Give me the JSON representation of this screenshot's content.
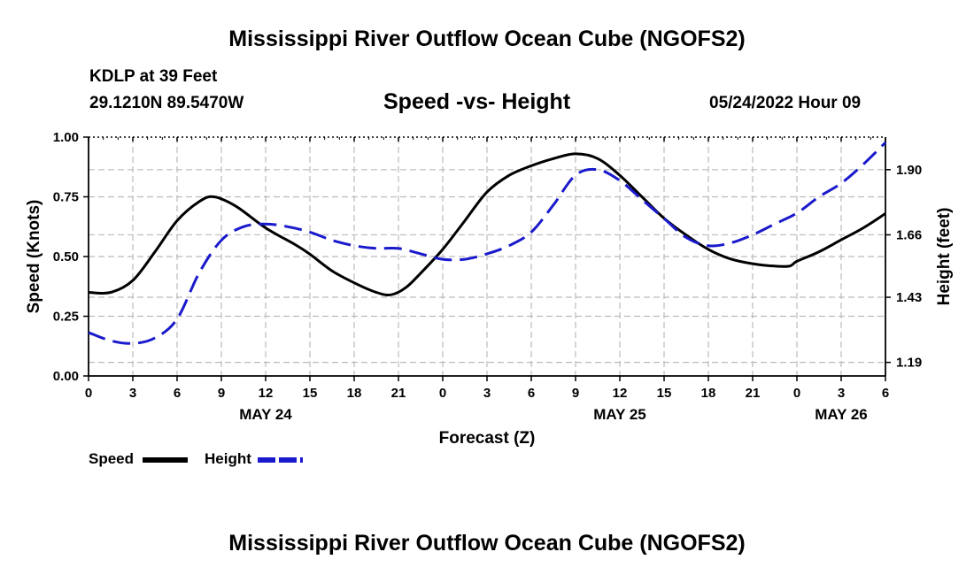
{
  "page": {
    "title": "Mississippi River Outflow Ocean Cube (NGOFS2)",
    "footer_title": "Mississippi River Outflow Ocean Cube (NGOFS2)",
    "station": "KDLP at 39 Feet",
    "coords": "29.1210N  89.5470W",
    "subtitle": "Speed -vs- Height",
    "datetime": "05/24/2022 Hour 09"
  },
  "legend": {
    "speed_label": "Speed",
    "height_label": "Height"
  },
  "colors": {
    "speed": "#000000",
    "height": "#1a1acc",
    "grid": "#bbbbbb"
  },
  "chart_data": {
    "type": "line",
    "xlabel": "Forecast (Z)",
    "ylabel": "Speed (Knots)",
    "y2label": "Height (feet)",
    "xlim": [
      0,
      54
    ],
    "ylim": [
      0,
      1.0
    ],
    "y2lim": [
      1.14,
      2.02
    ],
    "xticks": [
      0,
      3,
      6,
      9,
      12,
      15,
      18,
      21,
      24,
      27,
      30,
      33,
      36,
      39,
      42,
      45,
      48,
      51,
      54
    ],
    "xtick_labels": [
      "0",
      "3",
      "6",
      "9",
      "12",
      "15",
      "18",
      "21",
      "0",
      "3",
      "6",
      "9",
      "12",
      "15",
      "18",
      "21",
      "0",
      "3",
      "6"
    ],
    "yticks": [
      0.0,
      0.25,
      0.5,
      0.75,
      1.0
    ],
    "ytick_labels": [
      "0.00",
      "0.25",
      "0.50",
      "0.75",
      "1.00"
    ],
    "y2ticks": [
      1.19,
      1.43,
      1.66,
      1.9
    ],
    "y2tick_labels": [
      "1.19",
      "1.43",
      "1.66",
      "1.90"
    ],
    "date_labels": [
      {
        "x": 12,
        "label": "MAY 24"
      },
      {
        "x": 36,
        "label": "MAY 25"
      },
      {
        "x": 51,
        "label": "MAY 26"
      }
    ],
    "series": [
      {
        "name": "Speed",
        "axis": "left",
        "style": "solid",
        "x": [
          0,
          1.5,
          3,
          4.5,
          6,
          7.5,
          8.5,
          10,
          12,
          14,
          15,
          16.5,
          18,
          19.5,
          20.5,
          21.5,
          22.5,
          24,
          25.5,
          27,
          28.5,
          30,
          31.5,
          33,
          34.5,
          36,
          37.5,
          39,
          40.5,
          42,
          43.5,
          45,
          46.5,
          47.5,
          48,
          49.5,
          51,
          52.5,
          54
        ],
        "values": [
          0.35,
          0.35,
          0.4,
          0.52,
          0.65,
          0.73,
          0.75,
          0.71,
          0.62,
          0.55,
          0.51,
          0.44,
          0.39,
          0.35,
          0.34,
          0.37,
          0.43,
          0.53,
          0.65,
          0.77,
          0.84,
          0.88,
          0.91,
          0.93,
          0.91,
          0.84,
          0.75,
          0.66,
          0.59,
          0.53,
          0.49,
          0.47,
          0.46,
          0.46,
          0.48,
          0.52,
          0.57,
          0.62,
          0.68
        ]
      },
      {
        "name": "Height",
        "axis": "right",
        "style": "dashed",
        "x": [
          0,
          1.5,
          3,
          4.5,
          6,
          7.5,
          9,
          10.5,
          12,
          13.5,
          15,
          16.5,
          18,
          19.5,
          21,
          22.5,
          24,
          25.5,
          27,
          28.5,
          30,
          31.5,
          33,
          34.5,
          36,
          37.5,
          39,
          40.5,
          42,
          43.5,
          45,
          46.5,
          48,
          49.5,
          51,
          52.5,
          54
        ],
        "values": [
          1.3,
          1.27,
          1.26,
          1.28,
          1.35,
          1.52,
          1.64,
          1.69,
          1.7,
          1.69,
          1.67,
          1.64,
          1.62,
          1.61,
          1.61,
          1.59,
          1.57,
          1.57,
          1.59,
          1.62,
          1.67,
          1.77,
          1.88,
          1.9,
          1.86,
          1.79,
          1.72,
          1.65,
          1.62,
          1.63,
          1.66,
          1.7,
          1.74,
          1.8,
          1.85,
          1.92,
          2.0
        ]
      }
    ]
  }
}
